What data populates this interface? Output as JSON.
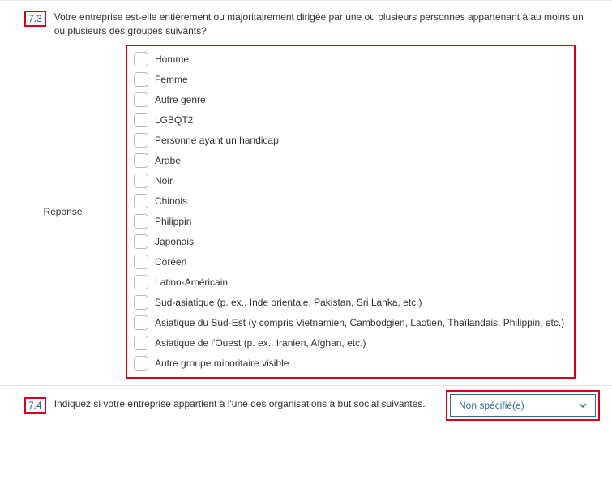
{
  "q73": {
    "number": "7.3",
    "text": "Votre entreprise est-elle entièrement ou majoritairement dirigée par une ou plusieurs personnes appartenant à au moins un ou plusieurs des groupes suivants?",
    "answer_label": "Réponse",
    "options": [
      "Homme",
      "Femme",
      "Autre genre",
      "LGBQT2",
      "Personne ayant un handicap",
      "Arabe",
      "Noir",
      "Chinois",
      "Philippin",
      "Japonais",
      "Coréen",
      "Latino-Américain",
      "Sud-asiatique (p. ex., Inde orientale, Pakistan, Sri Lanka, etc.)",
      "Asiatique du Sud-Est (y compris Vietnamien, Cambodgien, Laotien, Thaïlandais, Philippin, etc.)",
      "Asiatique de l'Ouest (p. ex., Iranien, Afghan, etc.)",
      "Autre groupe minoritaire visible"
    ]
  },
  "q74": {
    "number": "7.4",
    "text": "Indiquez si votre entreprise appartient à l'une des organisations à but social suivantes.",
    "dropdown_value": "Non spécifié(e)"
  },
  "colors": {
    "highlight_border": "#d9001b",
    "link_blue": "#2c6ca0",
    "text": "#333333",
    "divider": "#e5e5e5",
    "checkbox_border": "#bbbbbb"
  }
}
